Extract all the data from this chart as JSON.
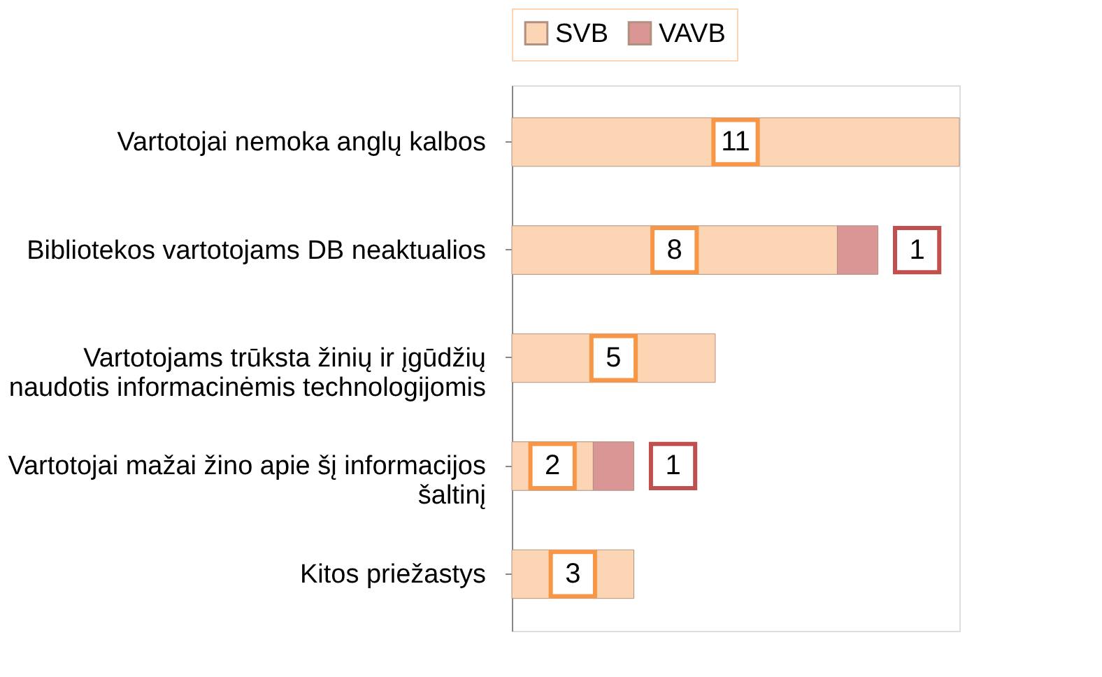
{
  "chart_data": {
    "type": "bar",
    "orientation": "horizontal",
    "stacked": true,
    "data_labels": true,
    "legend": "top",
    "grid": false,
    "categories": [
      "Vartotojai nemoka anglų kalbos",
      "Bibliotekos vartotojams DB neaktualios",
      "Vartotojams trūksta žinių ir įgūdžių naudotis informacinėmis technologijomis",
      "Vartotojai mažai žino apie šį informacijos šaltinį",
      "Kitos priežastys"
    ],
    "series": [
      {
        "name": "SVB",
        "color": "#fcd5b5",
        "values": [
          11,
          8,
          5,
          2,
          3
        ]
      },
      {
        "name": "VAVB",
        "color": "#d99694",
        "values": [
          null,
          1,
          null,
          1,
          null
        ]
      }
    ]
  }
}
